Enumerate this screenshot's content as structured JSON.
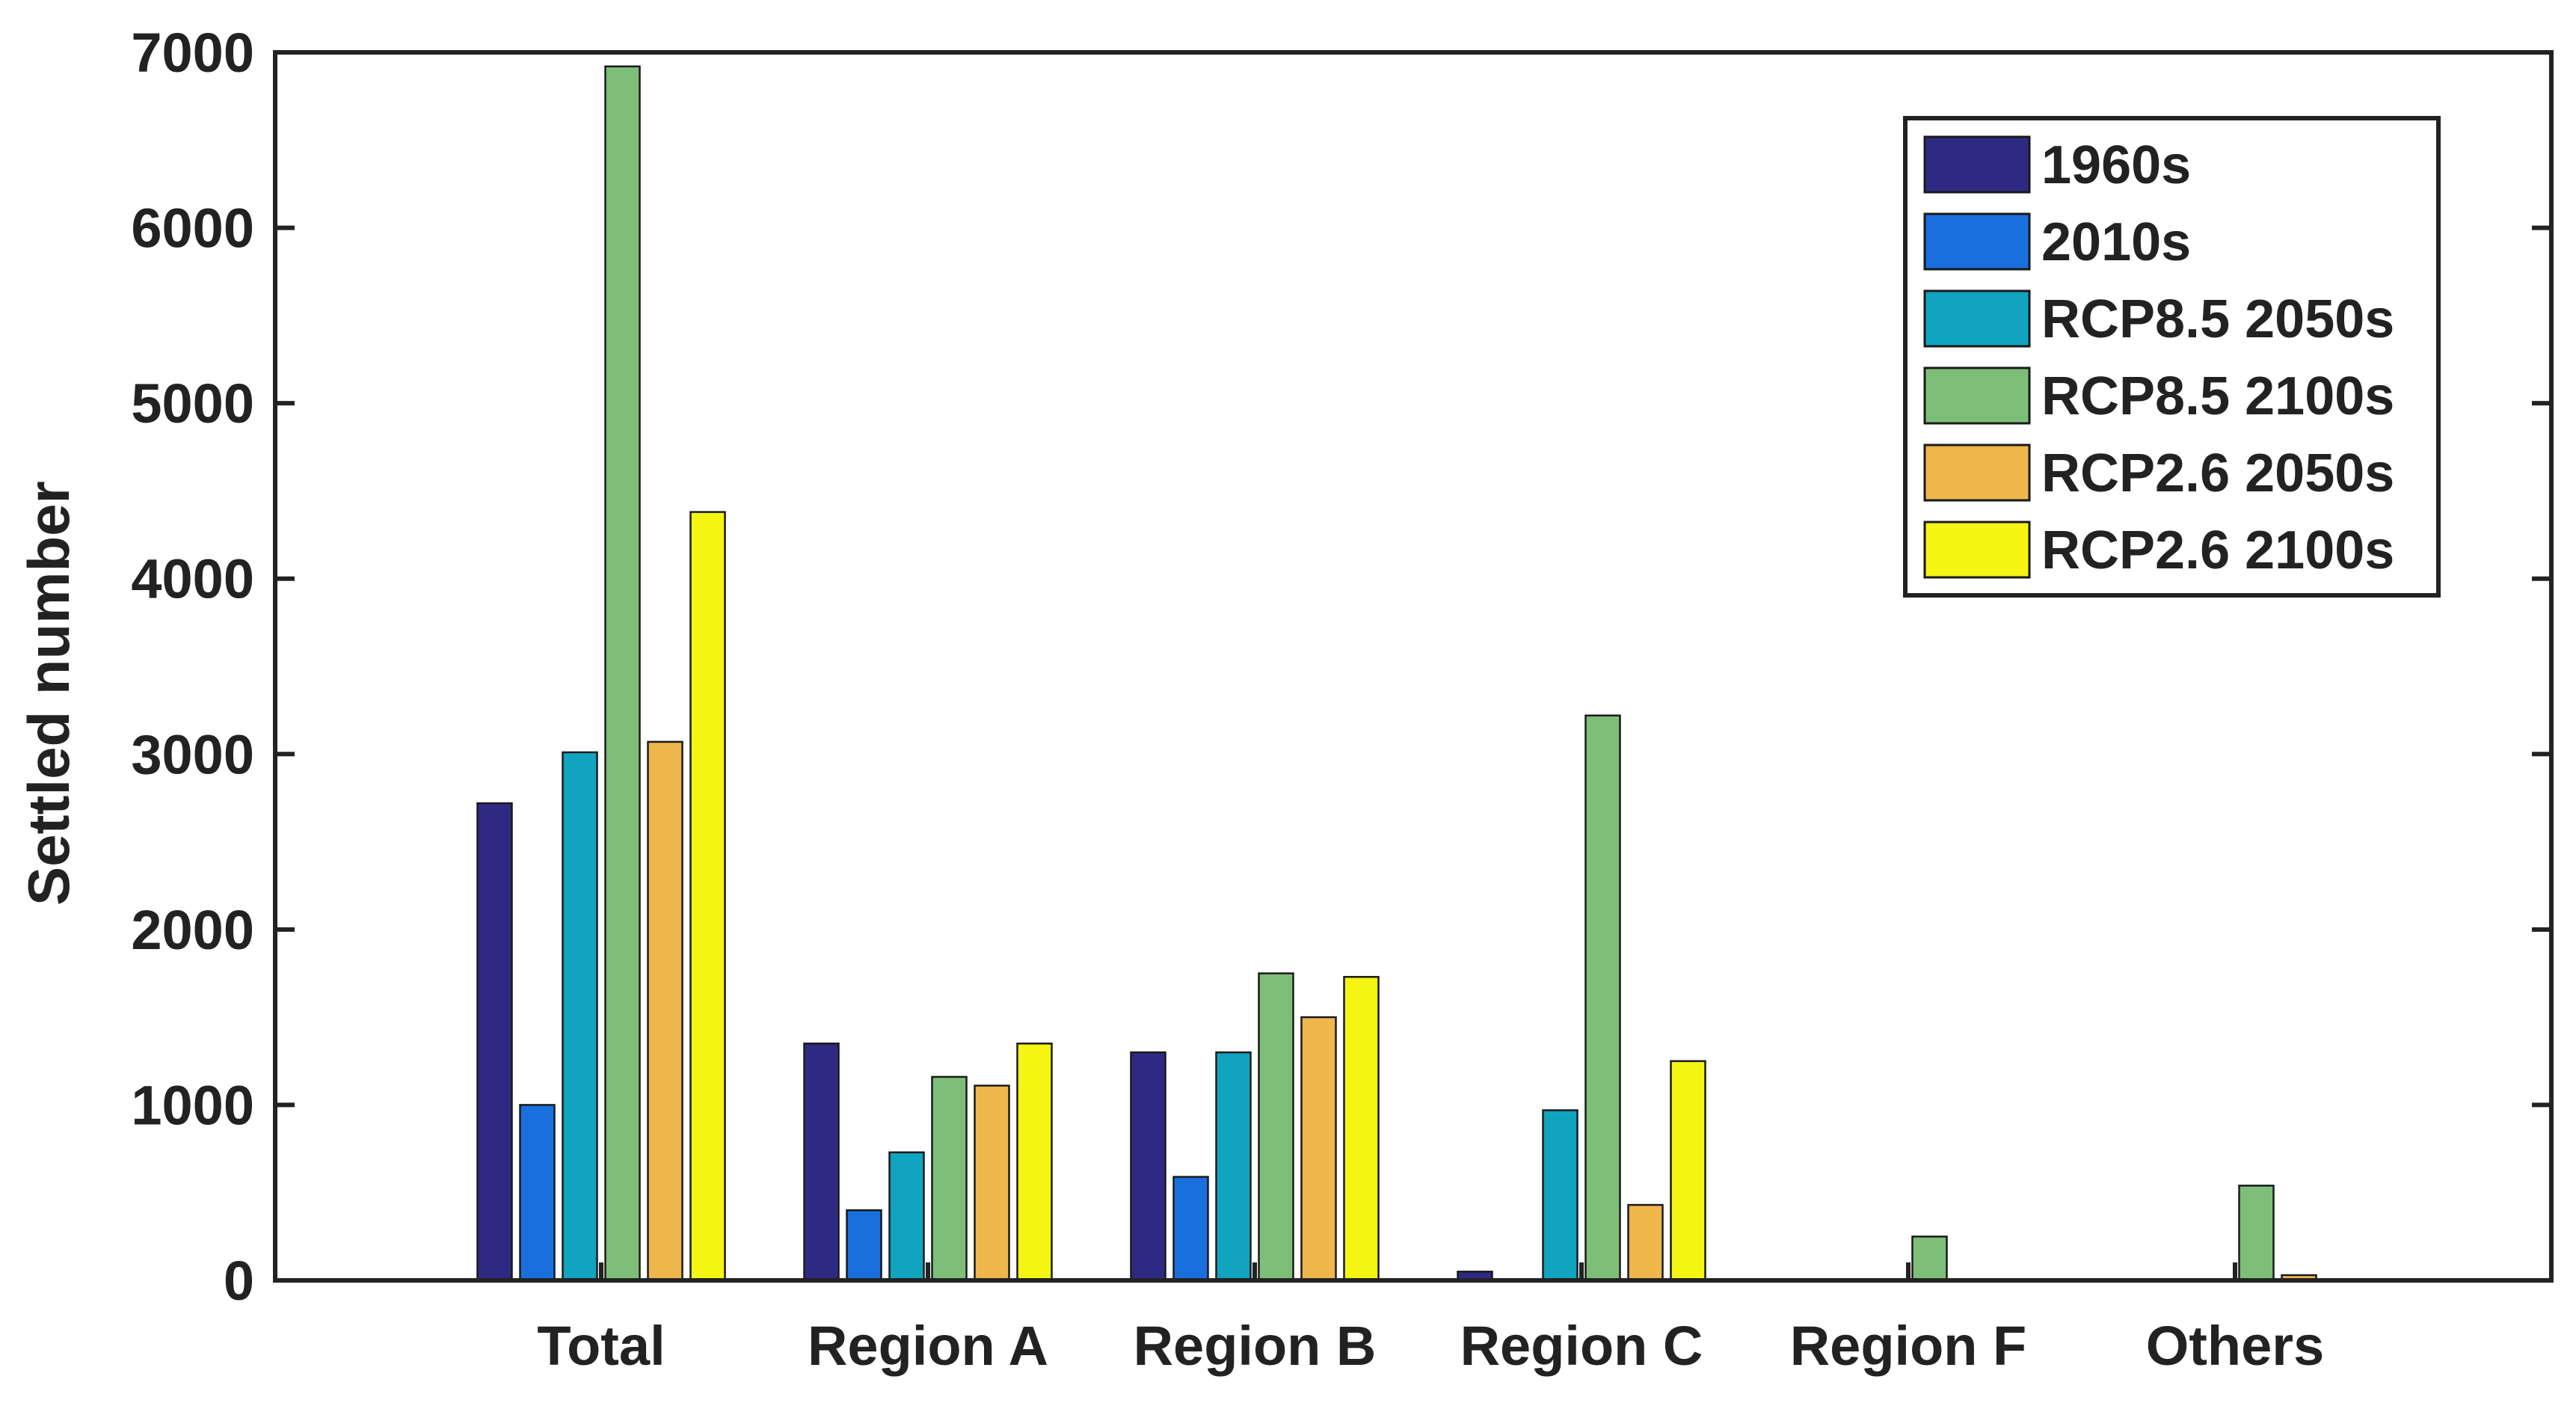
{
  "chart_data": {
    "type": "bar",
    "title": "",
    "xlabel": "",
    "ylabel": "Settled number",
    "ylim": [
      0,
      7000
    ],
    "yticks": [
      "0",
      "1000",
      "2000",
      "3000",
      "4000",
      "5000",
      "6000",
      "7000"
    ],
    "categories": [
      "Total",
      "Region A",
      "Region B",
      "Region C",
      "Region F",
      "Others"
    ],
    "grid": false,
    "legend_position": "top-right",
    "series": [
      {
        "name": "1960s",
        "color": "#2e2a84",
        "values": [
          2720,
          1350,
          1300,
          50,
          0,
          0
        ]
      },
      {
        "name": "2010s",
        "color": "#1a6fdf",
        "values": [
          1000,
          400,
          590,
          0,
          0,
          0
        ]
      },
      {
        "name": "RCP8.5 2050s",
        "color": "#10a4c0",
        "values": [
          3010,
          730,
          1300,
          970,
          0,
          0
        ]
      },
      {
        "name": "RCP8.5 2100s",
        "color": "#7dbf78",
        "values": [
          6920,
          1160,
          1750,
          3220,
          250,
          540
        ]
      },
      {
        "name": "RCP2.6 2050s",
        "color": "#efb64c",
        "values": [
          3070,
          1110,
          1500,
          430,
          0,
          30
        ]
      },
      {
        "name": "RCP2.6 2100s",
        "color": "#f5f514",
        "values": [
          4380,
          1350,
          1730,
          1250,
          0,
          0
        ]
      }
    ]
  }
}
